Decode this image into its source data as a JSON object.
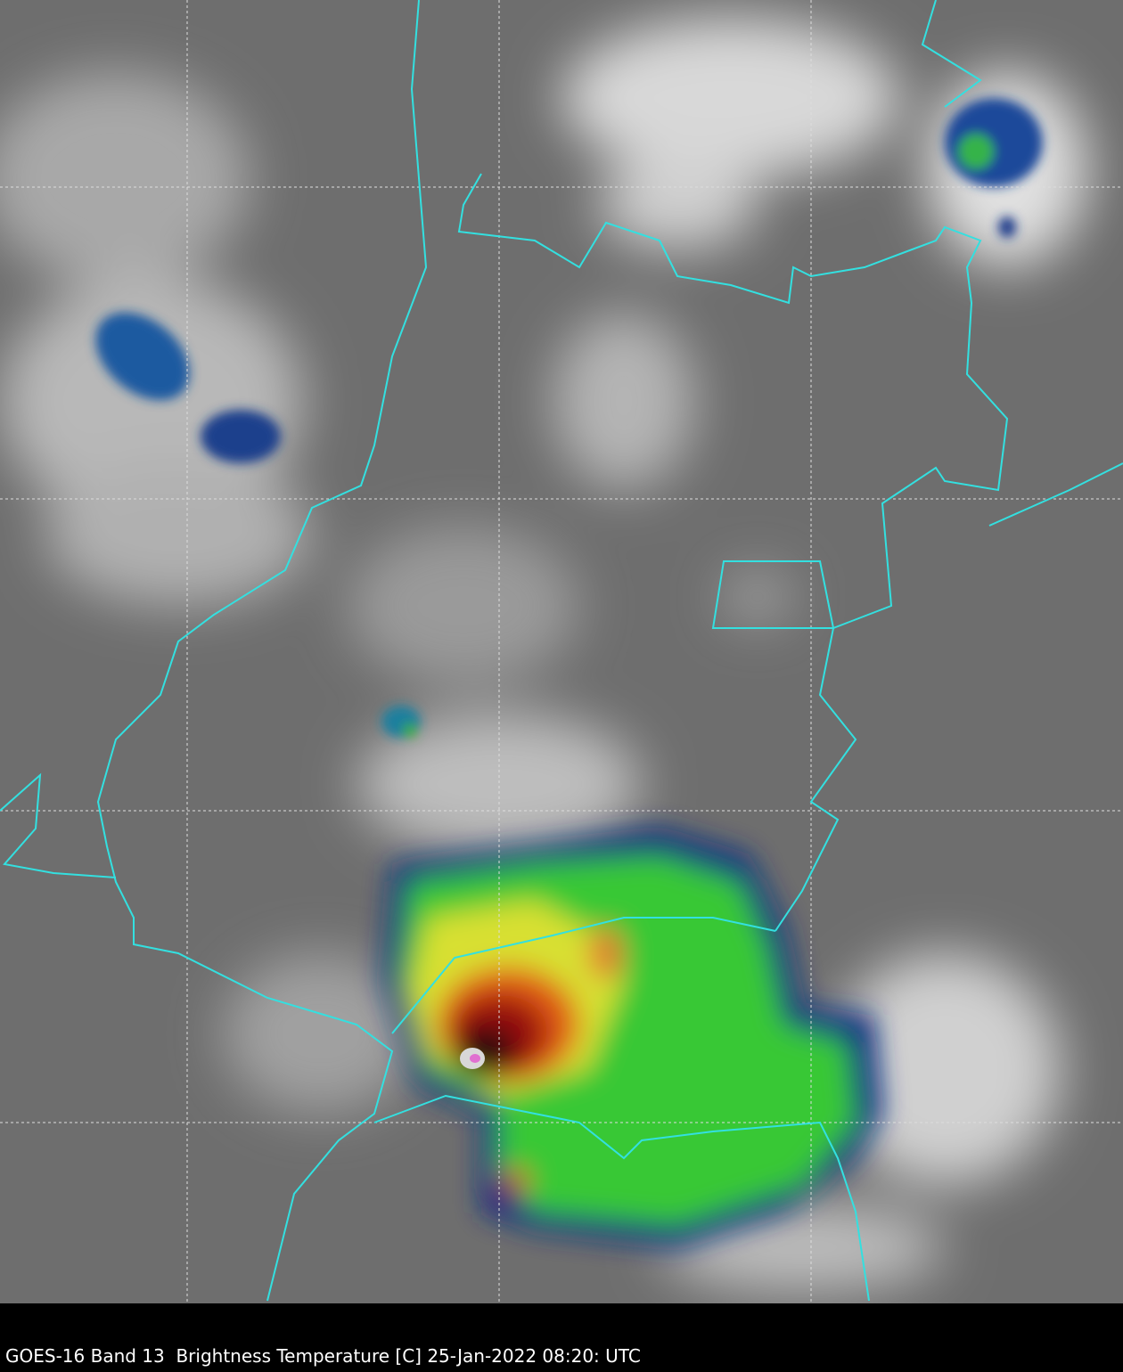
{
  "caption": "GOES-16 Band 13  Brightness Temperature [C] 25-Jan-2022 08:20: UTC"
}
